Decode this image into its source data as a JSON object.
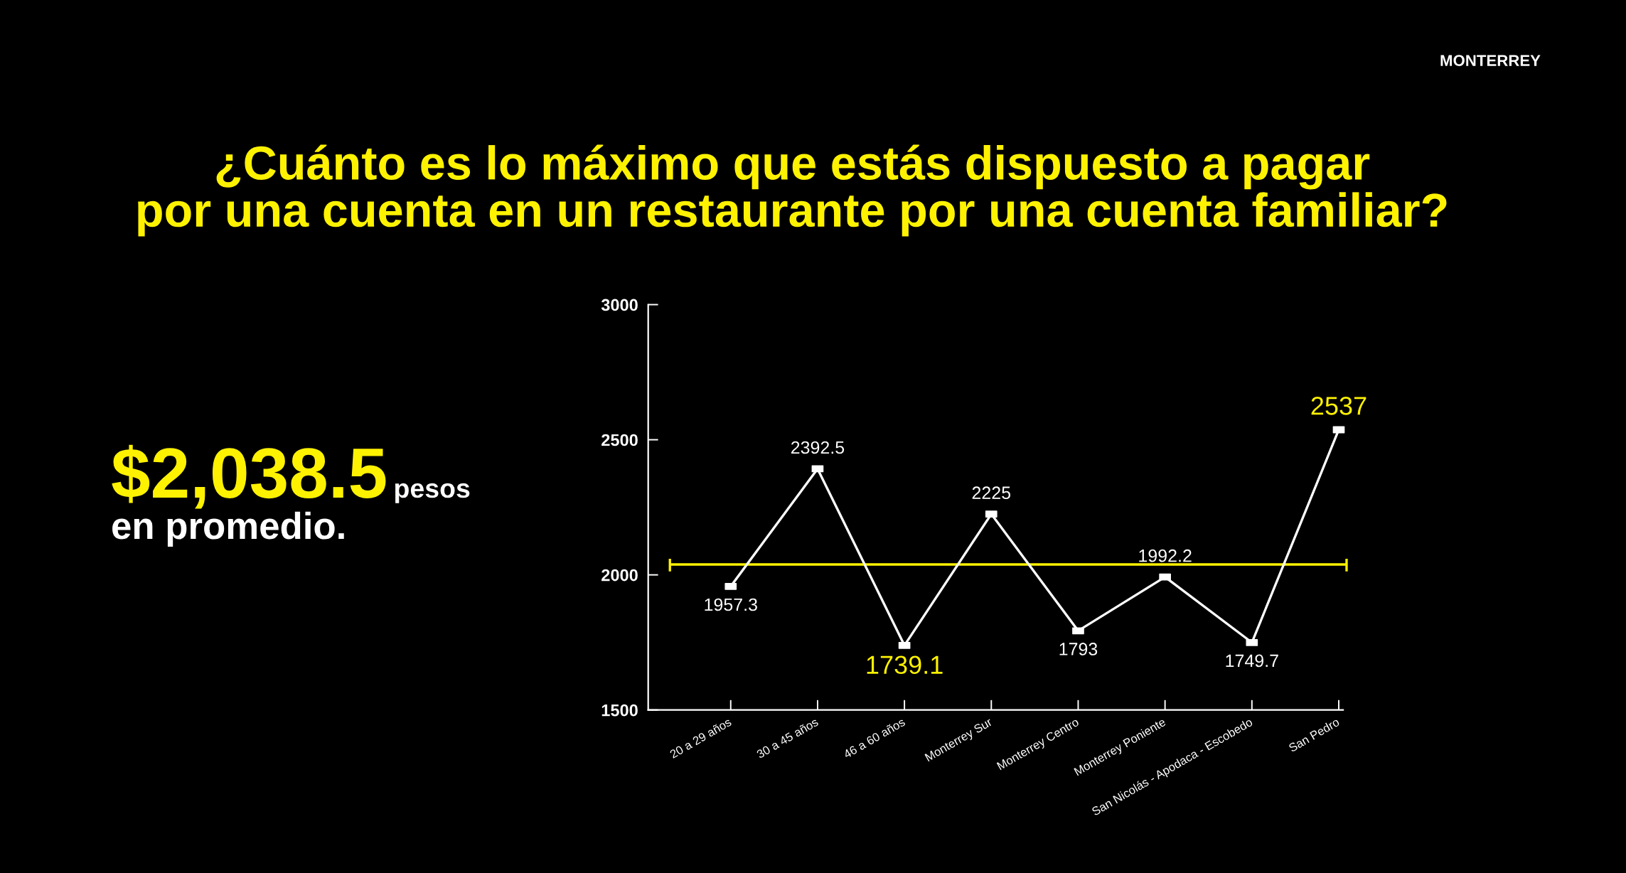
{
  "chart_data": {
    "type": "line",
    "title": "¿Cuánto es lo máximo que estás dispuesto a pagar\npor una cuenta en un restaurante por una cuenta familiar?",
    "categories": [
      "20 a 29 años",
      "30 a 45 años",
      "46 a 60 años",
      "Monterrey Sur",
      "Monterrey Centro",
      "Monterrey Poniente",
      "San Nicolás - Apodaca - Escobedo",
      "San Pedro"
    ],
    "series": [
      {
        "color": "#ffffff",
        "values": [
          1957.3,
          2392.5,
          1739.1,
          2225,
          1793,
          1992.2,
          1749.7,
          2537
        ]
      }
    ],
    "ylim": [
      1500,
      3000
    ],
    "yticks": [
      1500,
      2000,
      2500,
      3000
    ],
    "marker": "square",
    "line_style": "solid",
    "data_labels": true,
    "grid": false,
    "ref_lines": [
      {
        "axis": "y",
        "value": 2038.5,
        "color": "#fff200"
      }
    ],
    "annotations": [
      "$2,038.5",
      "pesos",
      "en promedio.",
      "MONTERREY"
    ]
  }
}
